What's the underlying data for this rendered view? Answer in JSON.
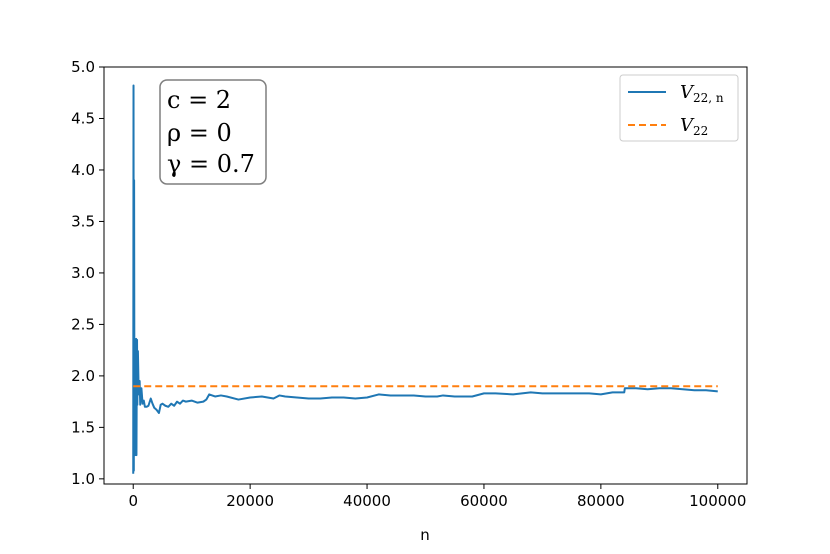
{
  "chart_data": {
    "type": "line",
    "title": "",
    "xlabel": "n",
    "ylabel": "",
    "xlim": [
      -5000,
      105000
    ],
    "ylim": [
      0.95,
      5.0
    ],
    "xticks": [
      0,
      20000,
      40000,
      60000,
      80000,
      100000
    ],
    "xtick_labels": [
      "0",
      "20000",
      "40000",
      "60000",
      "80000",
      "100000"
    ],
    "yticks": [
      1.0,
      1.5,
      2.0,
      2.5,
      3.0,
      3.5,
      4.0,
      4.5,
      5.0
    ],
    "ytick_labels": [
      "1.0",
      "1.5",
      "2.0",
      "2.5",
      "3.0",
      "3.5",
      "4.0",
      "4.5",
      "5.0"
    ],
    "grid": false,
    "legend_position": "top-right",
    "annotation": {
      "lines": [
        {
          "main": "c = 2"
        },
        {
          "main": "ρ = 0"
        },
        {
          "main": "γ = 0.7"
        }
      ],
      "position": "top-left"
    },
    "series": [
      {
        "name": "V22,n",
        "legend_main": "V",
        "legend_sub": "22, n",
        "color": "#1f77b4",
        "style": "solid",
        "x": [
          0,
          50,
          100,
          150,
          200,
          250,
          300,
          350,
          400,
          450,
          500,
          550,
          600,
          650,
          700,
          750,
          800,
          900,
          1000,
          1100,
          1200,
          1400,
          1600,
          1800,
          2000,
          2300,
          2600,
          3000,
          3300,
          3600,
          4000,
          4400,
          4700,
          5000,
          5500,
          6000,
          6500,
          7000,
          7500,
          8000,
          8500,
          9000,
          10000,
          11000,
          12000,
          12500,
          13000,
          14000,
          15000,
          16000,
          18000,
          20000,
          22000,
          24000,
          25000,
          26000,
          28000,
          30000,
          32000,
          34000,
          36000,
          38000,
          40000,
          42000,
          44000,
          46000,
          48000,
          50000,
          52000,
          53000,
          55000,
          58000,
          60000,
          62000,
          65000,
          68000,
          70000,
          72000,
          75000,
          78000,
          80000,
          82000,
          84000,
          84100,
          86000,
          88000,
          90000,
          92000,
          94000,
          96000,
          98000,
          100000
        ],
        "y": [
          1.05,
          4.82,
          1.08,
          3.9,
          1.7,
          2.1,
          1.23,
          2.0,
          1.5,
          2.1,
          2.36,
          1.23,
          1.88,
          2.35,
          1.72,
          2.02,
          2.24,
          1.94,
          1.82,
          1.95,
          1.72,
          1.88,
          1.73,
          1.76,
          1.7,
          1.7,
          1.71,
          1.78,
          1.73,
          1.69,
          1.67,
          1.64,
          1.72,
          1.73,
          1.71,
          1.7,
          1.73,
          1.71,
          1.75,
          1.73,
          1.76,
          1.75,
          1.76,
          1.74,
          1.75,
          1.77,
          1.82,
          1.8,
          1.81,
          1.8,
          1.77,
          1.79,
          1.8,
          1.78,
          1.81,
          1.8,
          1.79,
          1.78,
          1.78,
          1.79,
          1.79,
          1.78,
          1.79,
          1.82,
          1.81,
          1.81,
          1.81,
          1.8,
          1.8,
          1.81,
          1.8,
          1.8,
          1.83,
          1.83,
          1.82,
          1.84,
          1.83,
          1.83,
          1.83,
          1.83,
          1.82,
          1.84,
          1.84,
          1.88,
          1.88,
          1.87,
          1.88,
          1.88,
          1.87,
          1.86,
          1.86,
          1.85
        ]
      },
      {
        "name": "V22",
        "legend_main": "V",
        "legend_sub": "22",
        "color": "#ff7f0e",
        "style": "dashed",
        "x": [
          0,
          100000
        ],
        "y": [
          1.9,
          1.9
        ]
      }
    ]
  }
}
